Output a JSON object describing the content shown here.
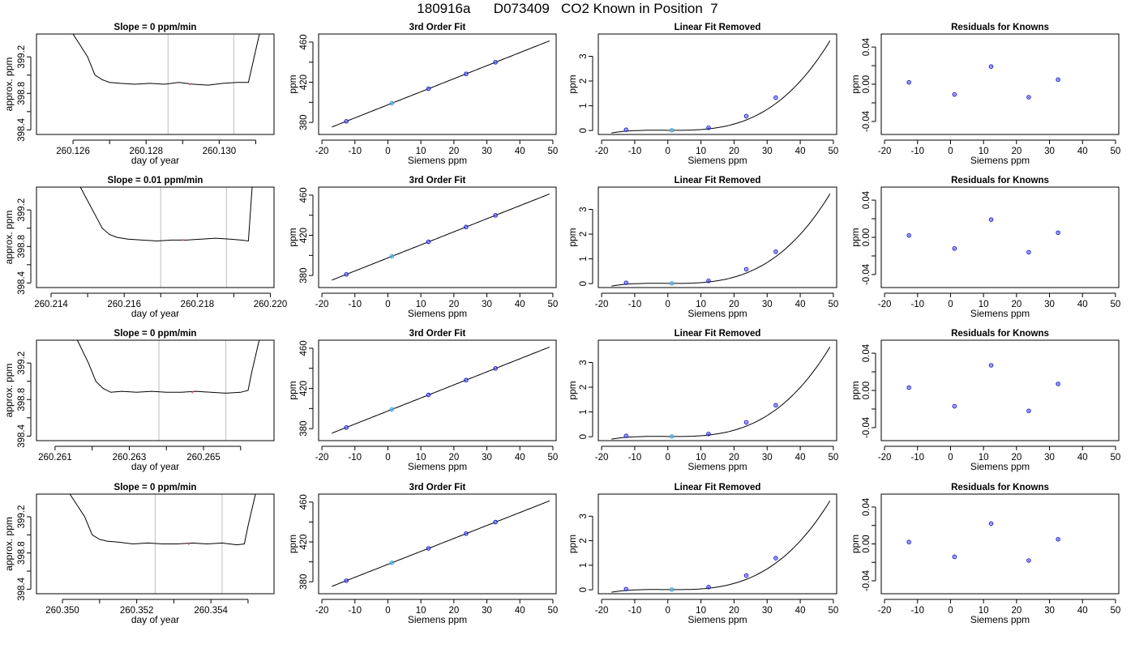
{
  "page_title": "180916a      D073409   CO2 Known in Position  7",
  "colors": {
    "line": "#000000",
    "grid_line": "#c8c8c8",
    "point_outline": "#1f2bd8",
    "point_fill": "#7b4be0",
    "zero_point": "#3fa8e8",
    "marker": "#e05a7a"
  },
  "chart_data": [
    {
      "type": "line",
      "row": 1,
      "title": "Slope =  0  ppm/min",
      "xlabel": "day of year",
      "ylabel": "approx. ppm",
      "xlim": [
        260.125,
        260.1315
      ],
      "ylim": [
        398.35,
        399.45
      ],
      "xticks": [
        260.126,
        260.127,
        260.128,
        260.129,
        260.13,
        260.131
      ],
      "xtick_labels": [
        "260.126",
        "",
        "260.128",
        "",
        "260.130",
        ""
      ],
      "yticks": [
        398.4,
        398.6,
        398.8,
        399.0,
        399.2
      ],
      "ytick_labels": [
        "398.4",
        "",
        "398.8",
        "",
        "399.2"
      ],
      "vlines": [
        260.1286,
        260.1304
      ],
      "x": [
        260.126,
        260.1264,
        260.1266,
        260.1268,
        260.127,
        260.1273,
        260.1277,
        260.1281,
        260.1285,
        260.1289,
        260.1293,
        260.1297,
        260.1301,
        260.1305,
        260.1308,
        260.1309,
        260.1311
      ],
      "y": [
        399.45,
        399.2,
        399.0,
        398.95,
        398.92,
        398.91,
        398.9,
        398.91,
        398.9,
        398.92,
        398.9,
        398.89,
        398.91,
        398.92,
        398.92,
        399.1,
        399.45
      ],
      "marker": [
        260.1292,
        398.9
      ]
    },
    {
      "type": "line",
      "row": 1,
      "title": "3rd Order Fit",
      "xlabel": "Siemens ppm",
      "ylabel": "ppm",
      "xlim": [
        -21,
        51
      ],
      "ylim": [
        368,
        468
      ],
      "xticks": [
        -20,
        -10,
        0,
        10,
        20,
        30,
        40,
        50
      ],
      "xtick_labels": [
        "-20",
        "-10",
        "0",
        "10",
        "20",
        "30",
        "40",
        "50"
      ],
      "yticks": [
        380,
        400,
        420,
        440,
        460
      ],
      "ytick_labels": [
        "380",
        "",
        "420",
        "",
        "460"
      ],
      "curve": {
        "c0": 397.5,
        "c1": 1.3,
        "c2": 0.0,
        "c3": 0.0
      },
      "points_x": [
        -12.6,
        1.2,
        12.3,
        23.7,
        32.6
      ],
      "points_y": [
        381.1,
        399.1,
        413.5,
        428.3,
        439.9
      ],
      "zero_index": 1
    },
    {
      "type": "line",
      "row": 1,
      "title": "Linear Fit Removed",
      "xlabel": "Siemens ppm",
      "ylabel": "ppm",
      "xlim": [
        -21,
        51
      ],
      "ylim": [
        -0.16,
        3.9
      ],
      "xticks": [
        -20,
        -10,
        0,
        10,
        20,
        30,
        40,
        50
      ],
      "xtick_labels": [
        "-20",
        "-10",
        "0",
        "10",
        "20",
        "30",
        "40",
        "50"
      ],
      "yticks": [
        0,
        1,
        2,
        3
      ],
      "ytick_labels": [
        "0",
        "1",
        "2",
        "3"
      ],
      "curve": {
        "c0": 0.008,
        "c1": -0.000833,
        "c2": 8.45e-05,
        "c3": 2.94e-05
      },
      "points_x": [
        -12.6,
        1.2,
        12.3,
        23.7,
        32.6
      ],
      "points_y": [
        0.03,
        0.01,
        0.11,
        0.58,
        1.33
      ],
      "zero_index": 1
    },
    {
      "type": "scatter",
      "row": 1,
      "title": "Residuals for Knowns",
      "xlabel": "Siemens ppm",
      "ylabel": "ppm",
      "xlim": [
        -21,
        51
      ],
      "ylim": [
        -0.054,
        0.054
      ],
      "xticks": [
        -20,
        -10,
        0,
        10,
        20,
        30,
        40,
        50
      ],
      "xtick_labels": [
        "-20",
        "-10",
        "0",
        "10",
        "20",
        "30",
        "40",
        "50"
      ],
      "yticks": [
        -0.04,
        -0.02,
        0,
        0.02,
        0.04
      ],
      "ytick_labels": [
        "-0.04",
        "",
        "0.00",
        "",
        "0.04"
      ],
      "points_x": [
        -12.6,
        1.2,
        12.3,
        23.7,
        32.6
      ],
      "points_y": [
        0.002,
        -0.011,
        0.019,
        -0.014,
        0.005
      ]
    },
    {
      "type": "line",
      "row": 2,
      "title": "Slope =  0.01  ppm/min",
      "xlabel": "day of year",
      "ylabel": "approx. ppm",
      "xlim": [
        260.2136,
        260.2201
      ],
      "ylim": [
        398.35,
        399.45
      ],
      "xticks": [
        260.214,
        260.215,
        260.216,
        260.217,
        260.218,
        260.219,
        260.22
      ],
      "xtick_labels": [
        "260.214",
        "",
        "260.216",
        "",
        "260.218",
        "",
        "260.220"
      ],
      "yticks": [
        398.4,
        398.6,
        398.8,
        399.0,
        399.2
      ],
      "ytick_labels": [
        "398.4",
        "",
        "398.8",
        "",
        "399.2"
      ],
      "vlines": [
        260.217,
        260.2188
      ],
      "x": [
        260.2148,
        260.2152,
        260.2154,
        260.2156,
        260.2158,
        260.2161,
        260.2165,
        260.2169,
        260.2173,
        260.2177,
        260.2181,
        260.2185,
        260.2189,
        260.2192,
        260.2194,
        260.2195
      ],
      "y": [
        399.45,
        399.15,
        399.0,
        398.93,
        398.9,
        398.88,
        398.87,
        398.86,
        398.87,
        398.87,
        398.88,
        398.89,
        398.88,
        398.87,
        398.86,
        399.45
      ],
      "marker": [
        260.2176,
        398.87
      ]
    },
    {
      "type": "line",
      "row": 2,
      "title": "3rd Order Fit",
      "xlabel": "Siemens ppm",
      "ylabel": "ppm",
      "xlim": [
        -21,
        51
      ],
      "ylim": [
        368,
        468
      ],
      "xticks": [
        -20,
        -10,
        0,
        10,
        20,
        30,
        40,
        50
      ],
      "xtick_labels": [
        "-20",
        "-10",
        "0",
        "10",
        "20",
        "30",
        "40",
        "50"
      ],
      "yticks": [
        380,
        400,
        420,
        440,
        460
      ],
      "ytick_labels": [
        "380",
        "",
        "420",
        "",
        "460"
      ],
      "curve": {
        "c0": 397.5,
        "c1": 1.3,
        "c2": 0.0,
        "c3": 0.0
      },
      "points_x": [
        -12.6,
        1.2,
        12.3,
        23.7,
        32.6
      ],
      "points_y": [
        381.1,
        399.1,
        413.5,
        428.3,
        439.9
      ],
      "zero_index": 1
    },
    {
      "type": "line",
      "row": 2,
      "title": "Linear Fit Removed",
      "xlabel": "Siemens ppm",
      "ylabel": "ppm",
      "xlim": [
        -21,
        51
      ],
      "ylim": [
        -0.16,
        3.9
      ],
      "xticks": [
        -20,
        -10,
        0,
        10,
        20,
        30,
        40,
        50
      ],
      "xtick_labels": [
        "-20",
        "-10",
        "0",
        "10",
        "20",
        "30",
        "40",
        "50"
      ],
      "yticks": [
        0,
        1,
        2,
        3
      ],
      "ytick_labels": [
        "0",
        "1",
        "2",
        "3"
      ],
      "curve": {
        "c0": 0.008,
        "c1": -0.000833,
        "c2": 8.45e-05,
        "c3": 2.94e-05
      },
      "points_x": [
        -12.6,
        1.2,
        12.3,
        23.7,
        32.6
      ],
      "points_y": [
        0.03,
        0.01,
        0.11,
        0.58,
        1.29
      ],
      "zero_index": 1
    },
    {
      "type": "scatter",
      "row": 2,
      "title": "Residuals for Knowns",
      "xlabel": "Siemens ppm",
      "ylabel": "ppm",
      "xlim": [
        -21,
        51
      ],
      "ylim": [
        -0.054,
        0.054
      ],
      "xticks": [
        -20,
        -10,
        0,
        10,
        20,
        30,
        40,
        50
      ],
      "xtick_labels": [
        "-20",
        "-10",
        "0",
        "10",
        "20",
        "30",
        "40",
        "50"
      ],
      "yticks": [
        -0.04,
        -0.02,
        0,
        0.02,
        0.04
      ],
      "ytick_labels": [
        "-0.04",
        "",
        "0.00",
        "",
        "0.04"
      ],
      "points_x": [
        -12.6,
        1.2,
        12.3,
        23.7,
        32.6
      ],
      "points_y": [
        0.002,
        -0.012,
        0.019,
        -0.016,
        0.005
      ]
    },
    {
      "type": "line",
      "row": 3,
      "title": "Slope =  0  ppm/min",
      "xlabel": "day of year",
      "ylabel": "approx. ppm",
      "xlim": [
        260.2605,
        260.2669
      ],
      "ylim": [
        398.35,
        399.45
      ],
      "xticks": [
        260.261,
        260.262,
        260.263,
        260.264,
        260.265,
        260.266
      ],
      "xtick_labels": [
        "260.261",
        "",
        "260.263",
        "",
        "260.265",
        ""
      ],
      "yticks": [
        398.4,
        398.6,
        398.8,
        399.0,
        399.2
      ],
      "ytick_labels": [
        "398.4",
        "",
        "398.8",
        "",
        "399.2"
      ],
      "vlines": [
        260.2638,
        260.2656
      ],
      "x": [
        260.2616,
        260.2619,
        260.2621,
        260.2623,
        260.2625,
        260.2628,
        260.2632,
        260.2636,
        260.264,
        260.2644,
        260.2648,
        260.2652,
        260.2656,
        260.266,
        260.2662,
        260.2663,
        260.2665
      ],
      "y": [
        399.45,
        399.2,
        399.0,
        398.92,
        398.88,
        398.89,
        398.88,
        398.89,
        398.88,
        398.88,
        398.89,
        398.88,
        398.87,
        398.88,
        398.9,
        399.1,
        399.45
      ],
      "marker": [
        260.2647,
        398.88
      ]
    },
    {
      "type": "line",
      "row": 3,
      "title": "3rd Order Fit",
      "xlabel": "Siemens ppm",
      "ylabel": "ppm",
      "xlim": [
        -21,
        51
      ],
      "ylim": [
        368,
        468
      ],
      "xticks": [
        -20,
        -10,
        0,
        10,
        20,
        30,
        40,
        50
      ],
      "xtick_labels": [
        "-20",
        "-10",
        "0",
        "10",
        "20",
        "30",
        "40",
        "50"
      ],
      "yticks": [
        380,
        400,
        420,
        440,
        460
      ],
      "ytick_labels": [
        "380",
        "",
        "420",
        "",
        "460"
      ],
      "curve": {
        "c0": 397.5,
        "c1": 1.3,
        "c2": 0.0,
        "c3": 0.0
      },
      "points_x": [
        -12.6,
        1.2,
        12.3,
        23.7,
        32.6
      ],
      "points_y": [
        381.1,
        399.1,
        413.5,
        428.3,
        439.9
      ],
      "zero_index": 1
    },
    {
      "type": "line",
      "row": 3,
      "title": "Linear Fit Removed",
      "xlabel": "Siemens ppm",
      "ylabel": "ppm",
      "xlim": [
        -21,
        51
      ],
      "ylim": [
        -0.16,
        3.9
      ],
      "xticks": [
        -20,
        -10,
        0,
        10,
        20,
        30,
        40,
        50
      ],
      "xtick_labels": [
        "-20",
        "-10",
        "0",
        "10",
        "20",
        "30",
        "40",
        "50"
      ],
      "yticks": [
        0,
        1,
        2,
        3
      ],
      "ytick_labels": [
        "0",
        "1",
        "2",
        "3"
      ],
      "curve": {
        "c0": 0.008,
        "c1": -0.000833,
        "c2": 8.45e-05,
        "c3": 2.94e-05
      },
      "points_x": [
        -12.6,
        1.2,
        12.3,
        23.7,
        32.6
      ],
      "points_y": [
        0.03,
        0.01,
        0.11,
        0.58,
        1.27
      ],
      "zero_index": 1
    },
    {
      "type": "scatter",
      "row": 3,
      "title": "Residuals for Knowns",
      "xlabel": "Siemens ppm",
      "ylabel": "ppm",
      "xlim": [
        -21,
        51
      ],
      "ylim": [
        -0.054,
        0.054
      ],
      "xticks": [
        -20,
        -10,
        0,
        10,
        20,
        30,
        40,
        50
      ],
      "xtick_labels": [
        "-20",
        "-10",
        "0",
        "10",
        "20",
        "30",
        "40",
        "50"
      ],
      "yticks": [
        -0.04,
        -0.02,
        0,
        0.02,
        0.04
      ],
      "ytick_labels": [
        "-0.04",
        "",
        "0.00",
        "",
        "0.04"
      ],
      "points_x": [
        -12.6,
        1.2,
        12.3,
        23.7,
        32.6
      ],
      "points_y": [
        0.003,
        -0.017,
        0.027,
        -0.022,
        0.007
      ]
    },
    {
      "type": "line",
      "row": 4,
      "title": "Slope =  0  ppm/min",
      "xlabel": "day of year",
      "ylabel": "approx. ppm",
      "xlim": [
        260.3493,
        260.3557
      ],
      "ylim": [
        398.35,
        399.45
      ],
      "xticks": [
        260.35,
        260.351,
        260.352,
        260.353,
        260.354,
        260.355
      ],
      "xtick_labels": [
        "260.350",
        "",
        "260.352",
        "",
        "260.354",
        ""
      ],
      "yticks": [
        398.4,
        398.6,
        398.8,
        399.0,
        399.2
      ],
      "ytick_labels": [
        "398.4",
        "",
        "398.8",
        "",
        "399.2"
      ],
      "vlines": [
        260.3525,
        260.3543
      ],
      "x": [
        260.3502,
        260.3506,
        260.3508,
        260.351,
        260.3512,
        260.3515,
        260.3519,
        260.3523,
        260.3527,
        260.3531,
        260.3535,
        260.3539,
        260.3543,
        260.3547,
        260.3549,
        260.355,
        260.3552
      ],
      "y": [
        399.45,
        399.2,
        399.0,
        398.95,
        398.93,
        398.92,
        398.9,
        398.91,
        398.9,
        398.9,
        398.91,
        398.9,
        398.91,
        398.89,
        398.9,
        399.1,
        399.45
      ],
      "marker": [
        260.3534,
        398.9
      ]
    },
    {
      "type": "line",
      "row": 4,
      "title": "3rd Order Fit",
      "xlabel": "Siemens ppm",
      "ylabel": "ppm",
      "xlim": [
        -21,
        51
      ],
      "ylim": [
        368,
        468
      ],
      "xticks": [
        -20,
        -10,
        0,
        10,
        20,
        30,
        40,
        50
      ],
      "xtick_labels": [
        "-20",
        "-10",
        "0",
        "10",
        "20",
        "30",
        "40",
        "50"
      ],
      "yticks": [
        380,
        400,
        420,
        440,
        460
      ],
      "ytick_labels": [
        "380",
        "",
        "420",
        "",
        "460"
      ],
      "curve": {
        "c0": 397.5,
        "c1": 1.3,
        "c2": 0.0,
        "c3": 0.0
      },
      "points_x": [
        -12.6,
        1.2,
        12.3,
        23.7,
        32.6
      ],
      "points_y": [
        381.1,
        399.1,
        413.5,
        428.3,
        439.9
      ],
      "zero_index": 1
    },
    {
      "type": "line",
      "row": 4,
      "title": "Linear Fit Removed",
      "xlabel": "Siemens ppm",
      "ylabel": "ppm",
      "xlim": [
        -21,
        51
      ],
      "ylim": [
        -0.16,
        3.9
      ],
      "xticks": [
        -20,
        -10,
        0,
        10,
        20,
        30,
        40,
        50
      ],
      "xtick_labels": [
        "-20",
        "-10",
        "0",
        "10",
        "20",
        "30",
        "40",
        "50"
      ],
      "yticks": [
        0,
        1,
        2,
        3
      ],
      "ytick_labels": [
        "0",
        "1",
        "2",
        "3"
      ],
      "curve": {
        "c0": 0.008,
        "c1": -0.000833,
        "c2": 8.45e-05,
        "c3": 2.94e-05
      },
      "points_x": [
        -12.6,
        1.2,
        12.3,
        23.7,
        32.6
      ],
      "points_y": [
        0.03,
        0.01,
        0.11,
        0.58,
        1.29
      ],
      "zero_index": 1
    },
    {
      "type": "scatter",
      "row": 4,
      "title": "Residuals for Knowns",
      "xlabel": "Siemens ppm",
      "ylabel": "ppm",
      "xlim": [
        -21,
        51
      ],
      "ylim": [
        -0.054,
        0.054
      ],
      "xticks": [
        -20,
        -10,
        0,
        10,
        20,
        30,
        40,
        50
      ],
      "xtick_labels": [
        "-20",
        "-10",
        "0",
        "10",
        "20",
        "30",
        "40",
        "50"
      ],
      "yticks": [
        -0.04,
        -0.02,
        0,
        0.02,
        0.04
      ],
      "ytick_labels": [
        "-0.04",
        "",
        "0.00",
        "",
        "0.04"
      ],
      "points_x": [
        -12.6,
        1.2,
        12.3,
        23.7,
        32.6
      ],
      "points_y": [
        0.002,
        -0.014,
        0.022,
        -0.018,
        0.005
      ]
    }
  ]
}
